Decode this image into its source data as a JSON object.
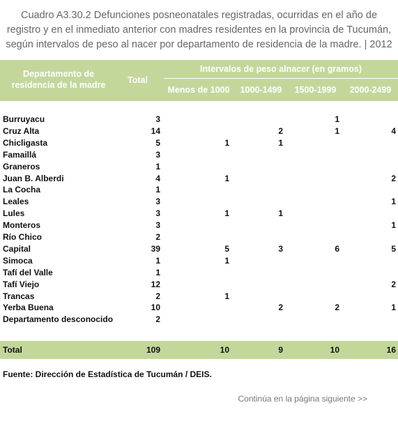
{
  "header": {
    "title": [
      "Cuadro A3.30.2 Defunciones posneonatales registradas, ocurridas en el año de",
      "registro y en el inmediato anterior con madres residentes en la provincia de Tucumán,",
      "según intervalos de peso al nacer por departamento de residencia de la madre. | 2012"
    ]
  },
  "table": {
    "columns": {
      "department": "Departamento de residencia de la madre",
      "total": "Total",
      "group": "Intervalos de peso alnacer (en gramos)",
      "intervals": [
        "Menos de 1000",
        "1000-1499",
        "1500-1999",
        "2000-2499"
      ]
    },
    "rows": [
      [
        "Burruyacu",
        3,
        null,
        null,
        1,
        null
      ],
      [
        "Cruz Alta",
        14,
        null,
        2,
        1,
        4
      ],
      [
        "Chicligasta",
        5,
        1,
        1,
        null,
        null
      ],
      [
        "Famaillá",
        3,
        null,
        null,
        null,
        null
      ],
      [
        "Graneros",
        1,
        null,
        null,
        null,
        null
      ],
      [
        "Juan B. Alberdi",
        4,
        1,
        null,
        null,
        2
      ],
      [
        "La Cocha",
        1,
        null,
        null,
        null,
        null
      ],
      [
        "Leales",
        3,
        null,
        null,
        null,
        1
      ],
      [
        "Lules",
        3,
        1,
        1,
        null,
        null
      ],
      [
        "Monteros",
        3,
        null,
        null,
        null,
        1
      ],
      [
        "Río Chico",
        2,
        null,
        null,
        null,
        null
      ],
      [
        "Capital",
        39,
        5,
        3,
        6,
        5
      ],
      [
        "Simoca",
        1,
        1,
        null,
        null,
        null
      ],
      [
        "Tafí del Valle",
        1,
        null,
        null,
        null,
        null
      ],
      [
        "Tafí Viejo",
        12,
        null,
        null,
        null,
        2
      ],
      [
        "Trancas",
        2,
        1,
        null,
        null,
        null
      ],
      [
        "Yerba Buena",
        10,
        null,
        2,
        2,
        1
      ],
      [
        "Departamento desconocido",
        2,
        null,
        null,
        null,
        null
      ]
    ],
    "total_row": [
      "Total",
      109,
      10,
      9,
      10,
      16
    ]
  },
  "footer": {
    "source": "Fuente: Dirección de Estadística de Tucumán / DEIS.",
    "next": "Continúa en la página siguiente >>"
  }
}
